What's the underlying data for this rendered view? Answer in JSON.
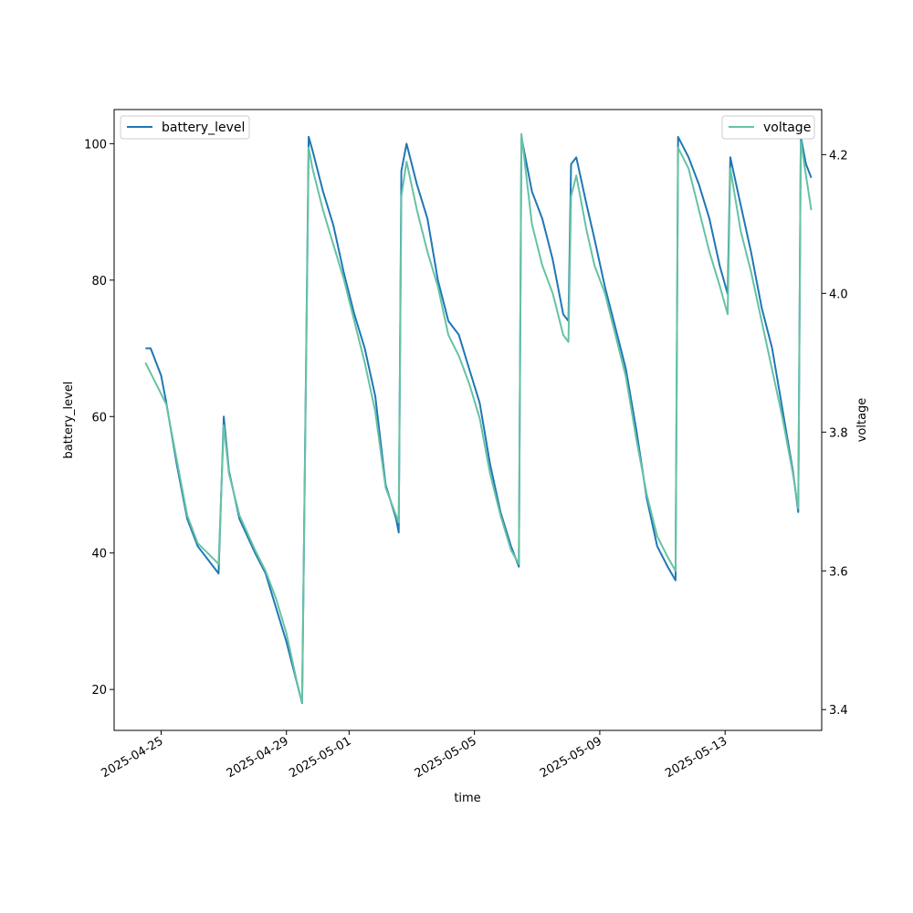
{
  "chart_data": {
    "type": "line",
    "xlabel": "time",
    "ylabel_left": "battery_level",
    "ylabel_right": "voltage",
    "x_range": [
      "2025-04-23T12:00",
      "2025-05-16T02:00"
    ],
    "x_ticks": [
      "2025-04-25",
      "2025-04-29",
      "2025-05-01",
      "2025-05-05",
      "2025-05-09",
      "2025-05-13"
    ],
    "y_left_range": [
      14,
      105
    ],
    "y_left_ticks": [
      20,
      40,
      60,
      80,
      100
    ],
    "y_right_range": [
      3.37,
      4.265
    ],
    "y_right_ticks": [
      3.4,
      3.6,
      3.8,
      4.0,
      4.2
    ],
    "grid": false,
    "legends": [
      {
        "label": "battery_level",
        "placement": "upper left"
      },
      {
        "label": "voltage",
        "placement": "upper right"
      }
    ],
    "series": [
      {
        "name": "battery_level",
        "axis": "left",
        "color": "#1f77b4",
        "points": [
          [
            "2025-04-24T12:00",
            70
          ],
          [
            "2025-04-24T16:00",
            70
          ],
          [
            "2025-04-25T00:00",
            66
          ],
          [
            "2025-04-25T04:00",
            62
          ],
          [
            "2025-04-25T12:00",
            53
          ],
          [
            "2025-04-25T20:00",
            45
          ],
          [
            "2025-04-26T04:00",
            41
          ],
          [
            "2025-04-26T20:00",
            37
          ],
          [
            "2025-04-27T00:00",
            60
          ],
          [
            "2025-04-27T04:00",
            52
          ],
          [
            "2025-04-27T12:00",
            45
          ],
          [
            "2025-04-28T00:00",
            40
          ],
          [
            "2025-04-28T08:00",
            37
          ],
          [
            "2025-04-28T16:00",
            32
          ],
          [
            "2025-04-29T00:00",
            27
          ],
          [
            "2025-04-29T08:00",
            21
          ],
          [
            "2025-04-29T12:00",
            18
          ],
          [
            "2025-04-29T17:00",
            101
          ],
          [
            "2025-04-29T20:00",
            99
          ],
          [
            "2025-04-30T04:00",
            93
          ],
          [
            "2025-04-30T12:00",
            88
          ],
          [
            "2025-04-30T20:00",
            81
          ],
          [
            "2025-05-01T04:00",
            75
          ],
          [
            "2025-05-01T12:00",
            70
          ],
          [
            "2025-05-01T20:00",
            63
          ],
          [
            "2025-05-02T04:00",
            50
          ],
          [
            "2025-05-02T12:00",
            45
          ],
          [
            "2025-05-02T14:00",
            43
          ],
          [
            "2025-05-02T16:00",
            96
          ],
          [
            "2025-05-02T20:00",
            100
          ],
          [
            "2025-05-03T04:00",
            94
          ],
          [
            "2025-05-03T12:00",
            89
          ],
          [
            "2025-05-03T20:00",
            80
          ],
          [
            "2025-05-04T04:00",
            74
          ],
          [
            "2025-05-04T12:00",
            72
          ],
          [
            "2025-05-04T20:00",
            67
          ],
          [
            "2025-05-05T04:00",
            62
          ],
          [
            "2025-05-05T12:00",
            53
          ],
          [
            "2025-05-05T20:00",
            46
          ],
          [
            "2025-05-06T04:00",
            41
          ],
          [
            "2025-05-06T10:00",
            38
          ],
          [
            "2025-05-06T12:00",
            101
          ],
          [
            "2025-05-06T20:00",
            93
          ],
          [
            "2025-05-07T04:00",
            89
          ],
          [
            "2025-05-07T12:00",
            83
          ],
          [
            "2025-05-07T20:00",
            75
          ],
          [
            "2025-05-08T00:00",
            74
          ],
          [
            "2025-05-08T02:00",
            97
          ],
          [
            "2025-05-08T06:00",
            98
          ],
          [
            "2025-05-08T14:00",
            91
          ],
          [
            "2025-05-08T20:00",
            86
          ],
          [
            "2025-05-09T04:00",
            79
          ],
          [
            "2025-05-09T12:00",
            73
          ],
          [
            "2025-05-09T20:00",
            67
          ],
          [
            "2025-05-10T04:00",
            58
          ],
          [
            "2025-05-10T12:00",
            48
          ],
          [
            "2025-05-10T20:00",
            41
          ],
          [
            "2025-05-11T04:00",
            38
          ],
          [
            "2025-05-11T10:00",
            36
          ],
          [
            "2025-05-11T12:00",
            101
          ],
          [
            "2025-05-11T20:00",
            98
          ],
          [
            "2025-05-12T04:00",
            94
          ],
          [
            "2025-05-12T12:00",
            89
          ],
          [
            "2025-05-12T20:00",
            82
          ],
          [
            "2025-05-13T02:00",
            78
          ],
          [
            "2025-05-13T04:00",
            98
          ],
          [
            "2025-05-13T12:00",
            91
          ],
          [
            "2025-05-13T20:00",
            84
          ],
          [
            "2025-05-14T04:00",
            76
          ],
          [
            "2025-05-14T12:00",
            70
          ],
          [
            "2025-05-14T20:00",
            61
          ],
          [
            "2025-05-15T04:00",
            52
          ],
          [
            "2025-05-15T08:00",
            46
          ],
          [
            "2025-05-15T10:00",
            101
          ],
          [
            "2025-05-15T14:00",
            97
          ],
          [
            "2025-05-15T18:00",
            95
          ]
        ]
      },
      {
        "name": "voltage",
        "axis": "right",
        "color": "#66c2a5",
        "points": [
          [
            "2025-04-24T12:00",
            3.9
          ],
          [
            "2025-04-24T20:00",
            3.87
          ],
          [
            "2025-04-25T04:00",
            3.84
          ],
          [
            "2025-04-25T12:00",
            3.76
          ],
          [
            "2025-04-25T20:00",
            3.68
          ],
          [
            "2025-04-26T04:00",
            3.64
          ],
          [
            "2025-04-26T20:00",
            3.61
          ],
          [
            "2025-04-27T00:00",
            3.81
          ],
          [
            "2025-04-27T04:00",
            3.74
          ],
          [
            "2025-04-27T12:00",
            3.68
          ],
          [
            "2025-04-28T00:00",
            3.63
          ],
          [
            "2025-04-28T08:00",
            3.6
          ],
          [
            "2025-04-28T16:00",
            3.56
          ],
          [
            "2025-04-29T00:00",
            3.51
          ],
          [
            "2025-04-29T08:00",
            3.44
          ],
          [
            "2025-04-29T12:00",
            3.41
          ],
          [
            "2025-04-29T17:00",
            4.21
          ],
          [
            "2025-04-29T20:00",
            4.18
          ],
          [
            "2025-04-30T04:00",
            4.12
          ],
          [
            "2025-04-30T12:00",
            4.07
          ],
          [
            "2025-04-30T20:00",
            4.02
          ],
          [
            "2025-05-01T04:00",
            3.96
          ],
          [
            "2025-05-01T12:00",
            3.9
          ],
          [
            "2025-05-01T20:00",
            3.83
          ],
          [
            "2025-05-02T04:00",
            3.72
          ],
          [
            "2025-05-02T14:00",
            3.67
          ],
          [
            "2025-05-02T16:00",
            4.14
          ],
          [
            "2025-05-02T20:00",
            4.19
          ],
          [
            "2025-05-03T04:00",
            4.12
          ],
          [
            "2025-05-03T12:00",
            4.06
          ],
          [
            "2025-05-03T20:00",
            4.01
          ],
          [
            "2025-05-04T04:00",
            3.94
          ],
          [
            "2025-05-04T12:00",
            3.91
          ],
          [
            "2025-05-04T20:00",
            3.87
          ],
          [
            "2025-05-05T04:00",
            3.82
          ],
          [
            "2025-05-05T12:00",
            3.74
          ],
          [
            "2025-05-05T20:00",
            3.68
          ],
          [
            "2025-05-06T04:00",
            3.63
          ],
          [
            "2025-05-06T10:00",
            3.61
          ],
          [
            "2025-05-06T12:00",
            4.23
          ],
          [
            "2025-05-06T20:00",
            4.1
          ],
          [
            "2025-05-07T04:00",
            4.04
          ],
          [
            "2025-05-07T12:00",
            4.0
          ],
          [
            "2025-05-07T20:00",
            3.94
          ],
          [
            "2025-05-08T00:00",
            3.93
          ],
          [
            "2025-05-08T02:00",
            4.14
          ],
          [
            "2025-05-08T06:00",
            4.17
          ],
          [
            "2025-05-08T14:00",
            4.09
          ],
          [
            "2025-05-08T20:00",
            4.04
          ],
          [
            "2025-05-09T04:00",
            4.0
          ],
          [
            "2025-05-09T12:00",
            3.94
          ],
          [
            "2025-05-09T20:00",
            3.88
          ],
          [
            "2025-05-10T04:00",
            3.79
          ],
          [
            "2025-05-10T12:00",
            3.71
          ],
          [
            "2025-05-10T20:00",
            3.65
          ],
          [
            "2025-05-11T04:00",
            3.62
          ],
          [
            "2025-05-11T10:00",
            3.6
          ],
          [
            "2025-05-11T12:00",
            4.21
          ],
          [
            "2025-05-11T20:00",
            4.18
          ],
          [
            "2025-05-12T04:00",
            4.12
          ],
          [
            "2025-05-12T12:00",
            4.06
          ],
          [
            "2025-05-12T20:00",
            4.01
          ],
          [
            "2025-05-13T02:00",
            3.97
          ],
          [
            "2025-05-13T04:00",
            4.18
          ],
          [
            "2025-05-13T12:00",
            4.09
          ],
          [
            "2025-05-13T20:00",
            4.03
          ],
          [
            "2025-05-14T04:00",
            3.96
          ],
          [
            "2025-05-14T12:00",
            3.89
          ],
          [
            "2025-05-14T20:00",
            3.82
          ],
          [
            "2025-05-15T04:00",
            3.74
          ],
          [
            "2025-05-15T08:00",
            3.69
          ],
          [
            "2025-05-15T10:00",
            4.22
          ],
          [
            "2025-05-15T14:00",
            4.17
          ],
          [
            "2025-05-15T18:00",
            4.12
          ]
        ]
      }
    ]
  }
}
